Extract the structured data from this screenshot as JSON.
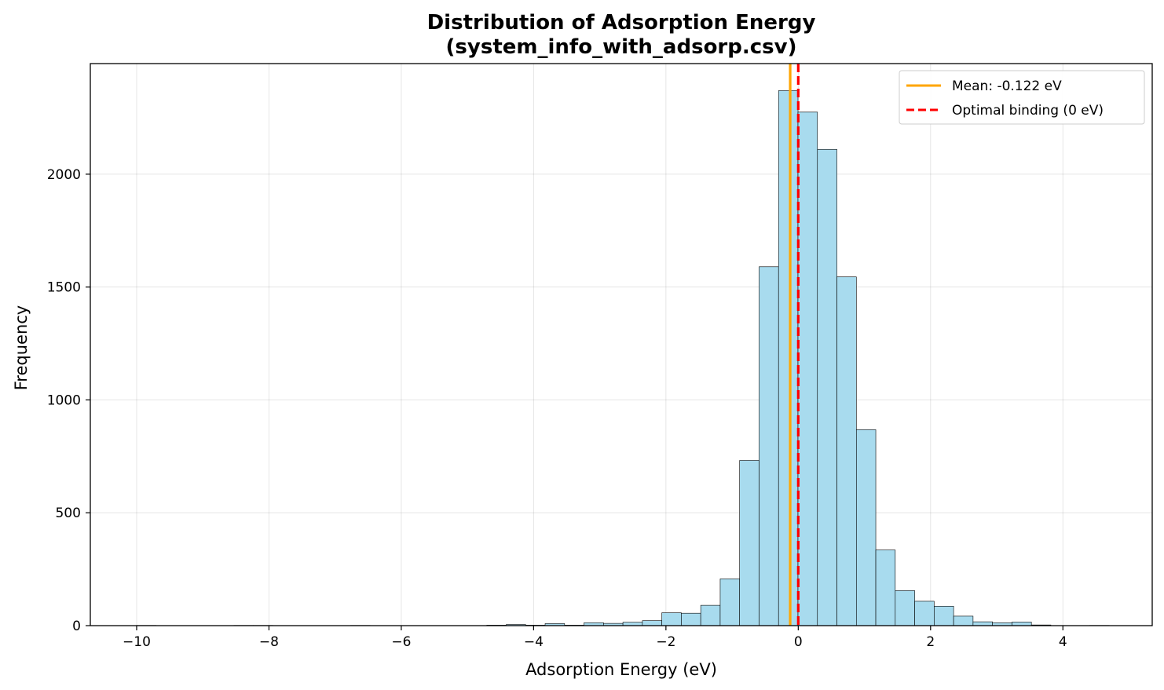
{
  "chart_data": {
    "type": "bar",
    "title": "Distribution of Adsorption Energy",
    "subtitle": "(system_info_with_adsorp.csv)",
    "xlabel": "Adsorption Energy (eV)",
    "ylabel": "Frequency",
    "xlim": [
      -10.7,
      5.35
    ],
    "ylim": [
      0,
      2490
    ],
    "xticks": [
      -10,
      -8,
      -6,
      -4,
      -2,
      0,
      2,
      4
    ],
    "xtick_labels": [
      "−10",
      "−8",
      "−6",
      "−4",
      "−2",
      "0",
      "2",
      "4"
    ],
    "yticks": [
      0,
      500,
      1000,
      1500,
      2000
    ],
    "ytick_labels": [
      "0",
      "500",
      "1000",
      "1500",
      "2000"
    ],
    "grid": true,
    "bar_color": "#a8dbee",
    "edge_color": "#000000",
    "bin_edges": [
      -10.0,
      -9.706,
      -9.412,
      -9.118,
      -8.824,
      -8.53,
      -8.236,
      -7.942,
      -7.648,
      -7.354,
      -7.06,
      -6.766,
      -6.472,
      -6.178,
      -5.884,
      -5.59,
      -5.296,
      -5.002,
      -4.708,
      -4.414,
      -4.12,
      -3.826,
      -3.532,
      -3.238,
      -2.944,
      -2.65,
      -2.356,
      -2.062,
      -1.768,
      -1.474,
      -1.18,
      -0.886,
      -0.592,
      -0.298,
      -0.004,
      0.29,
      0.584,
      0.878,
      1.172,
      1.466,
      1.76,
      2.054,
      2.348,
      2.642,
      2.936,
      3.23,
      3.524,
      3.818,
      4.112,
      4.406,
      4.7
    ],
    "counts": [
      1,
      0,
      0,
      0,
      0,
      1,
      1,
      0,
      0,
      0,
      0,
      1,
      0,
      0,
      0,
      0,
      0,
      0,
      2,
      5,
      2,
      9,
      2,
      13,
      10,
      15,
      22,
      57,
      55,
      90,
      207,
      732,
      1590,
      2370,
      2275,
      2110,
      1545,
      868,
      335,
      155,
      108,
      86,
      42,
      17,
      13,
      16,
      3,
      0,
      0,
      1
    ],
    "reference_lines": [
      {
        "label": "Mean: -0.122 eV",
        "x": -0.122,
        "color": "#ffa500",
        "style": "solid"
      },
      {
        "label": "Optimal binding (0 eV)",
        "x": 0,
        "color": "#ff0000",
        "style": "dashed"
      }
    ],
    "legend_position": "top-right"
  }
}
